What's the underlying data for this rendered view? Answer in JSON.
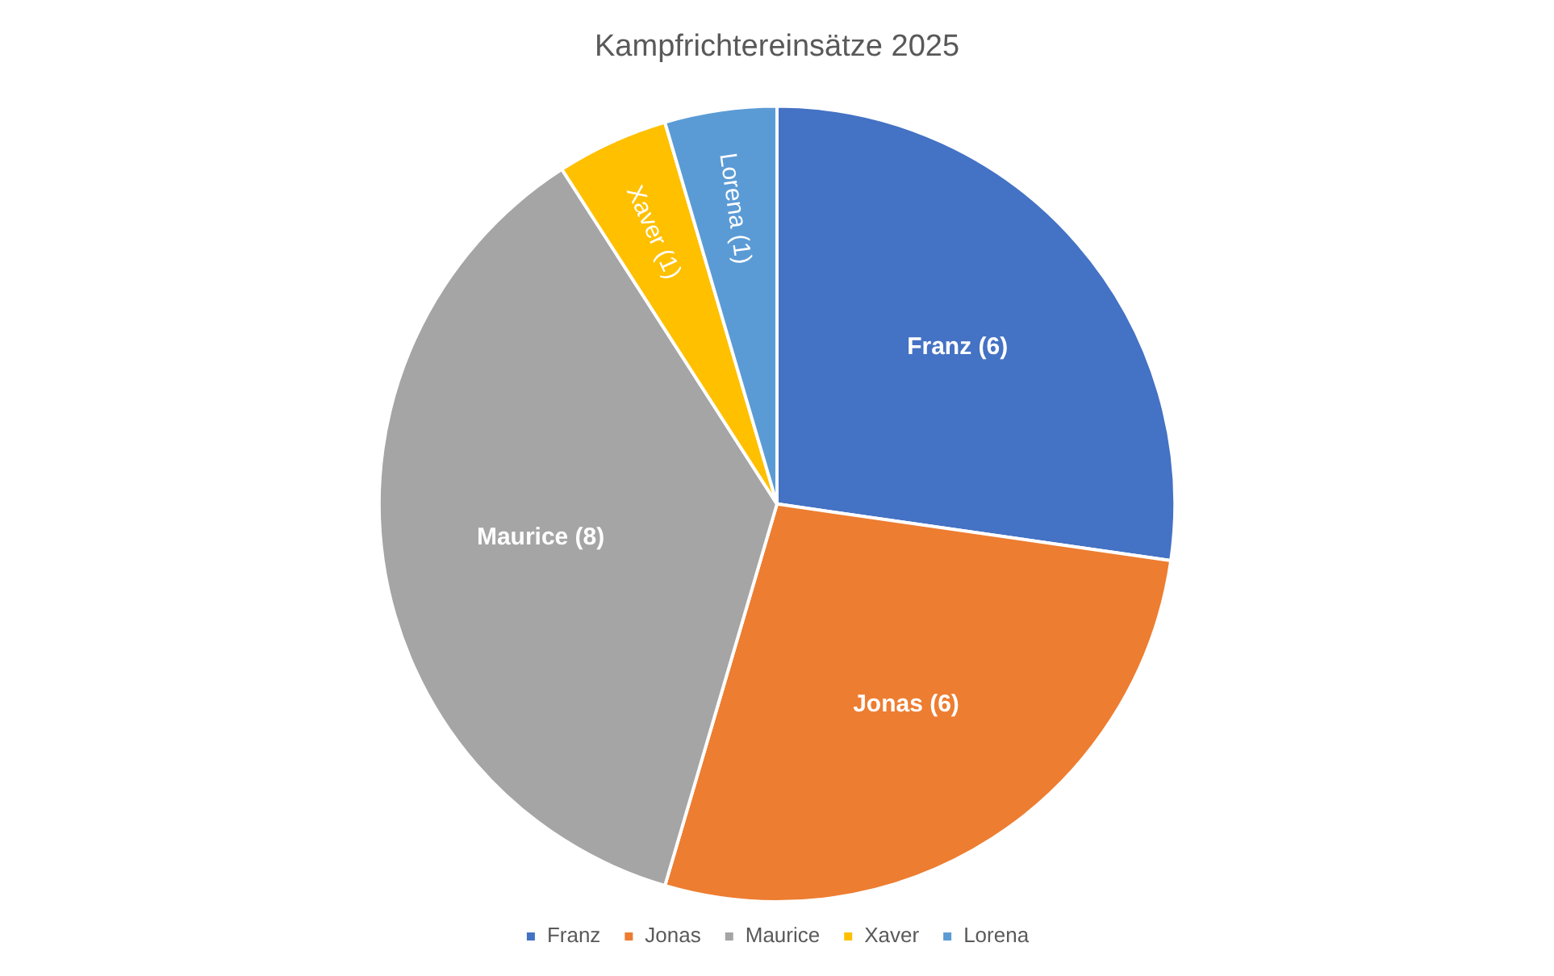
{
  "chart_data": {
    "type": "pie",
    "title": "Kampfrichtereinsätze 2025",
    "categories": [
      "Franz",
      "Jonas",
      "Maurice",
      "Xaver",
      "Lorena"
    ],
    "values": [
      6,
      6,
      8,
      1,
      1
    ],
    "colors": [
      "#4472c4",
      "#ed7d31",
      "#a5a5a5",
      "#ffc000",
      "#5b9bd5"
    ],
    "value_labels": [
      "Franz (6)",
      "Jonas (6)",
      "Maurice (8)",
      "Xaver (1)",
      "Lorena (1)"
    ],
    "legend": "bottom"
  }
}
